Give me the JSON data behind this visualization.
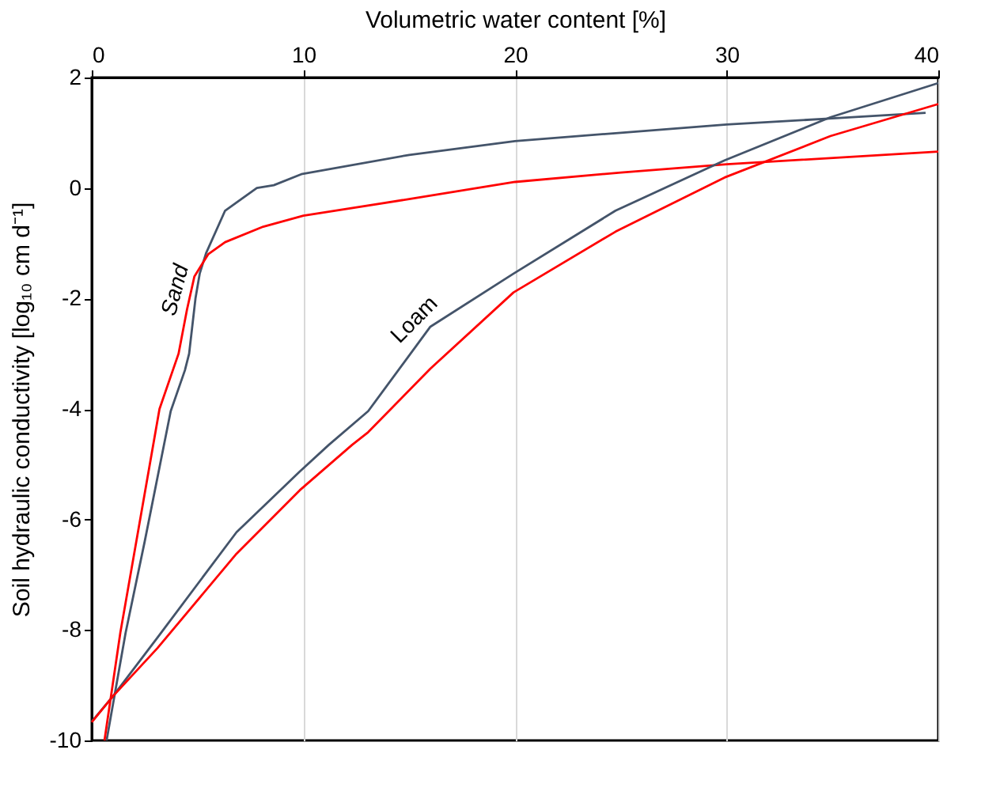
{
  "chart_data": {
    "type": "line",
    "xlabel": "Volumetric water content [%]",
    "ylabel": "Soil hydraulic conductivity  [log₁₀ cm d⁻¹]",
    "xlim": [
      0,
      40
    ],
    "xticks": [
      0,
      10,
      20,
      30,
      40
    ],
    "ylim": [
      -10,
      2
    ],
    "yticks": [
      -10,
      -8,
      -6,
      -4,
      -2,
      0,
      2
    ],
    "grid": "x",
    "marker": "none",
    "line_style": "solid",
    "series": [
      {
        "color": "#44546a",
        "x": [
          0.7,
          1.6,
          2.5,
          3.73,
          4.4,
          4.6,
          4.75,
          4.9,
          5.1,
          5.4,
          6.3,
          7.8,
          8.6,
          9.9,
          15,
          20,
          25,
          30,
          35,
          39.4
        ],
        "values": [
          -10,
          -8.05,
          -6.4,
          -4.04,
          -3.3,
          -3.0,
          -2.5,
          -2.0,
          -1.55,
          -1.18,
          -0.41,
          0.0,
          0.05,
          0.25,
          0.6,
          0.85,
          1.0,
          1.15,
          1.26,
          1.36
        ]
      },
      {
        "color": "#ff0000",
        "x": [
          0.6,
          1.35,
          3.2,
          4.1,
          4.5,
          4.85,
          5.5,
          6.3,
          8.1,
          10,
          15,
          20,
          25,
          30,
          40
        ],
        "values": [
          -10,
          -8.05,
          -4.0,
          -3.0,
          -2.2,
          -1.6,
          -1.2,
          -0.98,
          -0.7,
          -0.5,
          -0.2,
          0.11,
          0.28,
          0.43,
          0.66
        ]
      },
      {
        "color": "#44546a",
        "x": [
          0,
          1.0,
          3.1,
          6.84,
          9.83,
          11.2,
          13.06,
          16.0,
          19.93,
          24.75,
          29.9,
          34.9,
          40
        ],
        "values": [
          -9.66,
          -9.2,
          -8.14,
          -6.23,
          -5.13,
          -4.65,
          -4.04,
          -2.51,
          -1.55,
          -0.41,
          0.5,
          1.28,
          1.9
        ]
      },
      {
        "color": "#ff0000",
        "x": [
          0,
          1.0,
          3.1,
          6.84,
          9.83,
          12.3,
          13.06,
          16.0,
          19.93,
          24.75,
          29.9,
          34.9,
          40
        ],
        "values": [
          -9.67,
          -9.2,
          -8.33,
          -6.62,
          -5.47,
          -4.65,
          -4.42,
          -3.27,
          -1.89,
          -0.79,
          0.19,
          0.94,
          1.52
        ]
      }
    ],
    "annotations": [
      {
        "text": "Sand",
        "x": 5.1,
        "y": -1.55
      },
      {
        "text": "Loam",
        "x": 16.0,
        "y": -2.51
      }
    ]
  }
}
